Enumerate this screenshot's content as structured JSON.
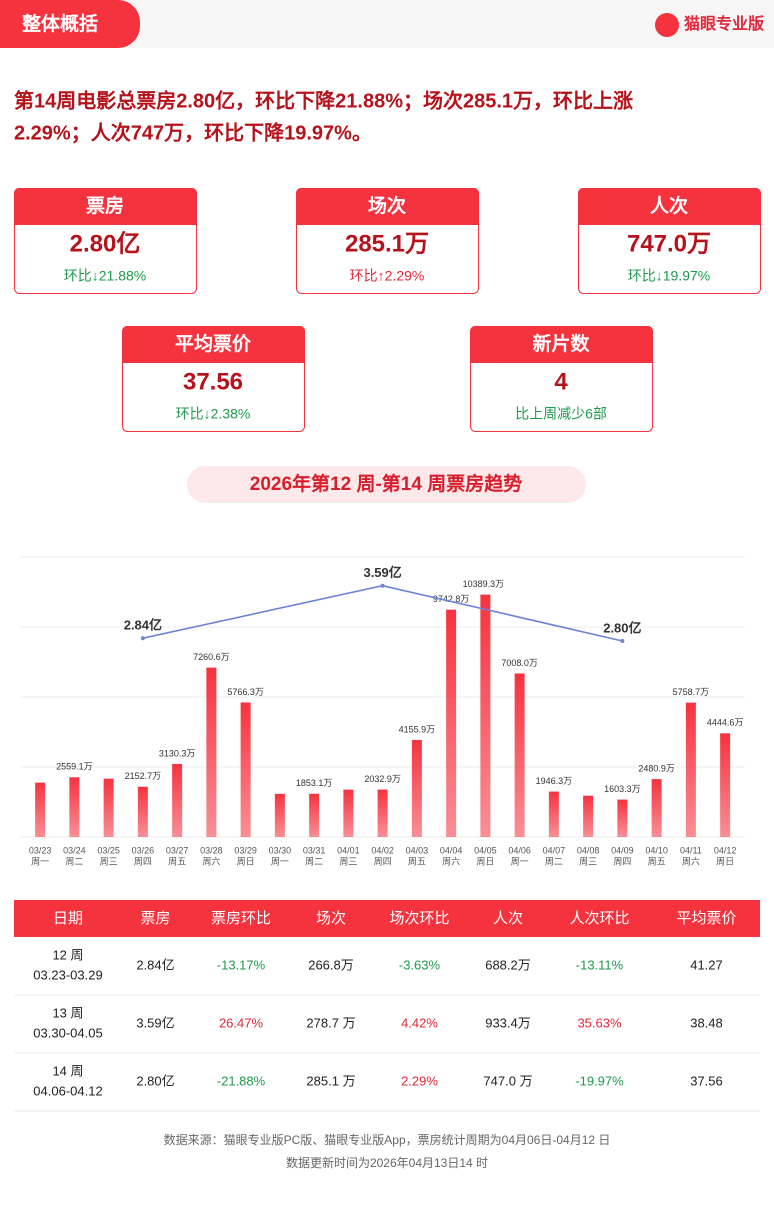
{
  "header": {
    "title": "整体概括",
    "brand": "猫眼专业版"
  },
  "summary": [
    "第14周电影总票房2.80亿，环比下降21.88%；场次285.1万，环比上涨",
    "2.29%；人次747万，环比下降19.97%。"
  ],
  "cards": [
    {
      "title": "票房",
      "value": "2.80亿",
      "change": "环比↓21.88%",
      "color": "#1e9a4b"
    },
    {
      "title": "场次",
      "value": "285.1万",
      "change": "环比↑2.29%",
      "color": "#e0283a"
    },
    {
      "title": "人次",
      "value": "747.0万",
      "change": "环比↓19.97%",
      "color": "#1e9a4b"
    },
    {
      "title": "平均票价",
      "value": "37.56",
      "change": "环比↓2.38%",
      "color": "#1e9a4b"
    },
    {
      "title": "新片数",
      "value": "4",
      "change": "比上周减少6部",
      "color": "#1e9a4b"
    }
  ],
  "chart_data": {
    "type": "bar",
    "title": "2026年第12 周-第14 周票房趋势",
    "categories": [
      "03/23",
      "03/24",
      "03/25",
      "03/26",
      "03/27",
      "03/28",
      "03/29",
      "03/30",
      "03/31",
      "04/01",
      "04/02",
      "04/03",
      "04/04",
      "04/05",
      "04/06",
      "04/07",
      "04/08",
      "04/09",
      "04/10",
      "04/11",
      "04/12"
    ],
    "weekdays": [
      "周一",
      "周二",
      "周三",
      "周四",
      "周五",
      "周六",
      "周日",
      "周一",
      "周二",
      "周三",
      "周四",
      "周五",
      "周六",
      "周日",
      "周一",
      "周二",
      "周三",
      "周四",
      "周五",
      "周六",
      "周日"
    ],
    "values": [
      2330,
      2559.1,
      2500,
      2152.7,
      3130.3,
      7260.6,
      5766.3,
      1850,
      1853.1,
      2030,
      2032.9,
      4155.9,
      9742.8,
      10389.3,
      7008.0,
      1946.3,
      1770,
      1603.3,
      2480.9,
      5758.7,
      4444.6
    ],
    "value_labels": [
      null,
      "2559.1万",
      null,
      "2152.7万",
      "3130.3万",
      "7260.6万",
      "5766.3万",
      null,
      "1853.1万",
      null,
      "2032.9万",
      "4155.9万",
      "9742.8万",
      "10389.3万",
      "7008.0万",
      "1946.3万",
      null,
      "1603.3万",
      "2480.9万",
      "5758.7万",
      "4444.6万"
    ],
    "color": "#f5333f",
    "ylim": [
      0,
      12000
    ],
    "yticks": [
      0,
      3000,
      6000,
      9000,
      12000
    ],
    "grid": true,
    "y2lim": [
      0,
      4
    ],
    "line": {
      "type": "line",
      "axis": "y2",
      "x": [
        "03/26",
        "04/02",
        "04/09"
      ],
      "values": [
        2.84,
        3.59,
        2.8
      ],
      "value_labels": [
        "2.84亿",
        "3.59亿",
        "2.80亿"
      ],
      "color": "#6b84d6"
    }
  },
  "table": {
    "headers": [
      "日期",
      "票房",
      "票房环比",
      "场次",
      "场次环比",
      "人次",
      "人次环比",
      "平均票价"
    ],
    "rows": [
      {
        "week": "12 周",
        "range": "03.23-03.29",
        "cells": [
          "2.84亿",
          "-13.17%",
          "266.8万",
          "-3.63%",
          "688.2万",
          "-13.11%",
          "41.27"
        ]
      },
      {
        "week": "13 周",
        "range": "03.30-04.05",
        "cells": [
          "3.59亿",
          "26.47%",
          "278.7 万",
          "4.42%",
          "933.4万",
          "35.63%",
          "38.48"
        ]
      },
      {
        "week": "14 周",
        "range": "04.06-04.12",
        "cells": [
          "2.80亿",
          "-21.88%",
          "285.1 万",
          "2.29%",
          "747.0 万",
          "-19.97%",
          "37.56"
        ]
      }
    ]
  },
  "footer": [
    "数据来源：猫眼专业版PC版、猫眼专业版App，票房统计周期为04月06日-04月12 日",
    "数据更新时间为2026年04月13日14 时"
  ]
}
